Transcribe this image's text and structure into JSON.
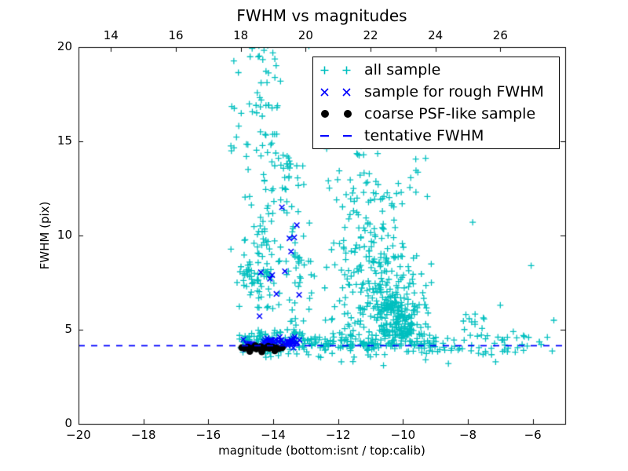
{
  "chart_data": {
    "type": "scatter",
    "title": "FWHM vs magnitudes",
    "xlabel": "magnitude (bottom:isnt / top:calib)",
    "ylabel": "FWHM (pix)",
    "xlim": [
      -20,
      -5
    ],
    "ylim": [
      0,
      20
    ],
    "x_ticks_bottom": [
      -20,
      -18,
      -16,
      -14,
      -12,
      -10,
      -8,
      -6
    ],
    "x_axis_top": {
      "lim": [
        13,
        28
      ],
      "ticks": [
        14,
        16,
        18,
        20,
        22,
        24,
        26
      ]
    },
    "y_ticks": [
      0,
      5,
      10,
      15,
      20
    ],
    "grid": false,
    "legend_position": "upper right",
    "tentative_fwhm": 4.15,
    "seed": 20,
    "colors": {
      "all_sample": "#00bfbf",
      "rough_fwhm": "#0000ff",
      "psf_sample": "#000000",
      "tentative_line": "#0000ff"
    },
    "series": [
      {
        "name": "all sample",
        "marker": "plus",
        "color": "#00bfbf",
        "clusters": [
          {
            "n": 8,
            "xd": "u",
            "x": [
              -15.4,
              -14.95
            ],
            "yd": "u",
            "y": [
              13.5,
              19.5
            ]
          },
          {
            "n": 50,
            "xd": "g",
            "x": [
              -14.35,
              0.28
            ],
            "yd": "u",
            "y": [
              13.2,
              20.2
            ]
          },
          {
            "n": 14,
            "xd": "u",
            "x": [
              -14.05,
              -13.45
            ],
            "yd": "u",
            "y": [
              13.0,
              14.5
            ]
          },
          {
            "n": 80,
            "xd": "g",
            "x": [
              -14.35,
              0.33
            ],
            "yd": "u",
            "y": [
              6.0,
              13.2
            ]
          },
          {
            "n": 15,
            "xd": "u",
            "x": [
              -15.05,
              -14.7
            ],
            "yd": "u",
            "y": [
              7.3,
              8.6
            ]
          },
          {
            "n": 12,
            "xd": "u",
            "x": [
              -14.4,
              -14.0
            ],
            "yd": "u",
            "y": [
              7.4,
              8.2
            ]
          },
          {
            "n": 60,
            "xd": "g",
            "x": [
              -13.35,
              0.25
            ],
            "yd": "u",
            "y": [
              4.8,
              13.8
            ]
          },
          {
            "n": 120,
            "xd": "u",
            "x": [
              -15.05,
              -13.0
            ],
            "yd": "g",
            "y": [
              4.35,
              0.3
            ]
          },
          {
            "n": 170,
            "xd": "u",
            "x": [
              -13.0,
              -9.0
            ],
            "yd": "g",
            "y": [
              4.25,
              0.28
            ]
          },
          {
            "n": 55,
            "xd": "u",
            "x": [
              -9.0,
              -5.25
            ],
            "yd": "g",
            "y": [
              4.2,
              0.35
            ]
          },
          {
            "n": 70,
            "xd": "g",
            "x": [
              -11.7,
              0.4
            ],
            "yd": "u",
            "y": [
              5.0,
              15.0
            ]
          },
          {
            "n": 60,
            "xd": "g",
            "x": [
              -10.9,
              0.45
            ],
            "yd": "u",
            "y": [
              9.0,
              13.0
            ]
          },
          {
            "n": 110,
            "xd": "g",
            "x": [
              -10.5,
              0.5
            ],
            "yd": "u",
            "y": [
              6.5,
              9.0
            ]
          },
          {
            "n": 200,
            "xd": "g",
            "x": [
              -10.2,
              0.5
            ],
            "yd": "u",
            "y": [
              4.6,
              6.5
            ]
          },
          {
            "n": 10,
            "xd": "u",
            "x": [
              -10.2,
              -9.2
            ],
            "yd": "u",
            "y": [
              11.5,
              14.5
            ]
          },
          {
            "n": 10,
            "xd": "u",
            "x": [
              -8.2,
              -7.4
            ],
            "yd": "u",
            "y": [
              5.0,
              6.2
            ]
          }
        ],
        "points": [
          [
            -7.85,
            10.7
          ],
          [
            -6.05,
            8.4
          ],
          [
            -5.35,
            5.5
          ],
          [
            -9.6,
            12.3
          ],
          [
            -9.3,
            14.1
          ],
          [
            -15.2,
            16.75
          ],
          [
            -12.35,
            14.6
          ],
          [
            -12.3,
            12.9
          ],
          [
            -12.9,
            20.05
          ],
          [
            -11.9,
            3.3
          ],
          [
            -10.6,
            3.1
          ],
          [
            -9.3,
            3.4
          ],
          [
            -8.6,
            3.2
          ],
          [
            -7.0,
            6.3
          ],
          [
            -6.6,
            4.9
          ],
          [
            -5.8,
            4.35
          ],
          [
            -5.55,
            4.6
          ]
        ]
      },
      {
        "name": "sample for rough FWHM",
        "marker": "x",
        "color": "#0000ff",
        "clusters": [
          {
            "n": 45,
            "xd": "u",
            "x": [
              -14.35,
              -13.1
            ],
            "yd": "g",
            "y": [
              4.33,
              0.13
            ]
          },
          {
            "n": 8,
            "xd": "u",
            "x": [
              -15.0,
              -14.35
            ],
            "yd": "g",
            "y": [
              4.25,
              0.12
            ]
          }
        ],
        "points": [
          [
            -13.73,
            11.5
          ],
          [
            -13.27,
            10.55
          ],
          [
            -13.5,
            9.85
          ],
          [
            -13.35,
            9.9
          ],
          [
            -13.45,
            9.15
          ],
          [
            -13.64,
            8.1
          ],
          [
            -14.03,
            7.9
          ],
          [
            -14.38,
            8.05
          ],
          [
            -14.1,
            7.7
          ],
          [
            -13.9,
            6.9
          ],
          [
            -13.2,
            6.85
          ],
          [
            -14.42,
            5.72
          ]
        ]
      },
      {
        "name": "coarse PSF-like sample",
        "marker": "dot",
        "color": "#000000",
        "points": [
          [
            -14.97,
            4.05
          ],
          [
            -14.88,
            4.02
          ],
          [
            -14.78,
            4.08
          ],
          [
            -14.68,
            4.0
          ],
          [
            -14.6,
            4.06
          ],
          [
            -14.52,
            3.98
          ],
          [
            -14.45,
            4.04
          ],
          [
            -14.38,
            4.1
          ],
          [
            -14.3,
            4.0
          ],
          [
            -14.22,
            4.05
          ],
          [
            -14.12,
            4.02
          ],
          [
            -14.02,
            4.08
          ],
          [
            -13.92,
            4.04
          ],
          [
            -13.82,
            4.0
          ],
          [
            -13.72,
            4.05
          ],
          [
            -14.72,
            3.85
          ],
          [
            -14.35,
            3.83
          ],
          [
            -13.95,
            3.88
          ],
          [
            -14.55,
            4.15
          ],
          [
            -14.15,
            4.12
          ]
        ]
      },
      {
        "name": "tentative FWHM",
        "marker": "dashed-line",
        "color": "#0000ff",
        "y": 4.15
      }
    ]
  }
}
